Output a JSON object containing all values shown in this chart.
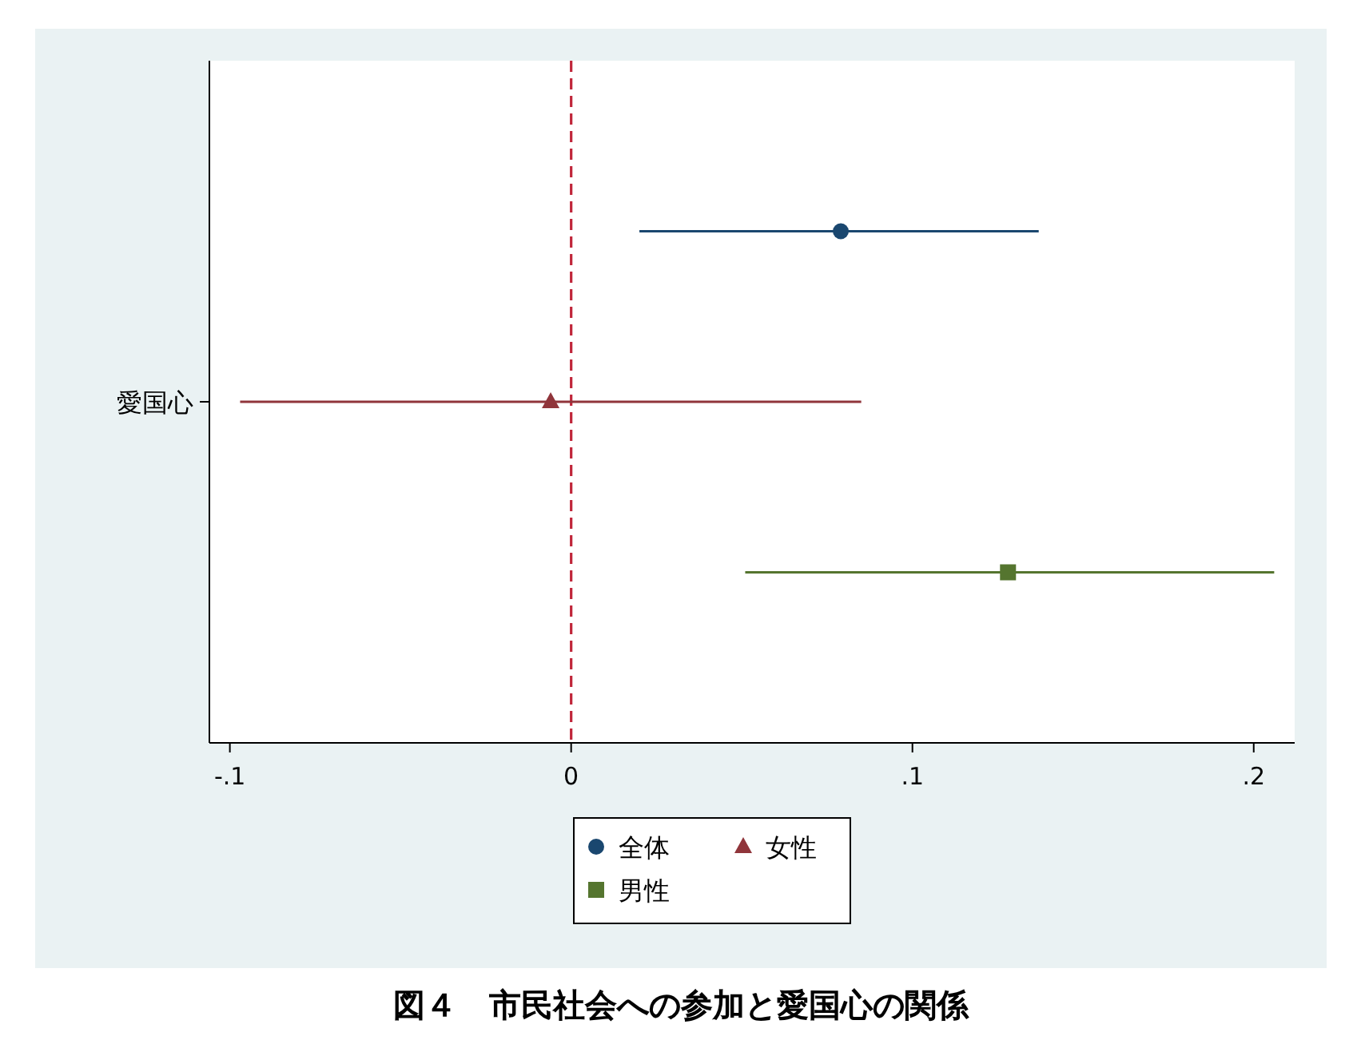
{
  "chart_data": {
    "type": "scatter",
    "orientation": "horizontal",
    "title": "図４　市民社会への参加と愛国心の関係",
    "categories": [
      "愛国心"
    ],
    "series": [
      {
        "name": "全体",
        "color": "#1a476f",
        "marker": "circle",
        "values": [
          0.079
        ],
        "errors": [
          [
            0.02,
            0.137
          ]
        ]
      },
      {
        "name": "女性",
        "color": "#90353b",
        "marker": "triangle",
        "values": [
          -0.006
        ],
        "errors": [
          [
            -0.097,
            0.085
          ]
        ]
      },
      {
        "name": "男性",
        "color": "#55752f",
        "marker": "square",
        "values": [
          0.128
        ],
        "errors": [
          [
            0.051,
            0.206
          ]
        ]
      }
    ],
    "xlim": [
      -0.106,
      0.212
    ],
    "xticks": [
      {
        "value": -0.1,
        "label": "-.1"
      },
      0,
      {
        "value": 0.1,
        "label": ".1"
      },
      {
        "value": 0.2,
        "label": ".2"
      }
    ],
    "ref_lines": [
      {
        "axis": "x",
        "value": 0,
        "color": "#c0263a",
        "line_style": "dashed"
      }
    ],
    "grid": false,
    "legend": "bottom"
  }
}
